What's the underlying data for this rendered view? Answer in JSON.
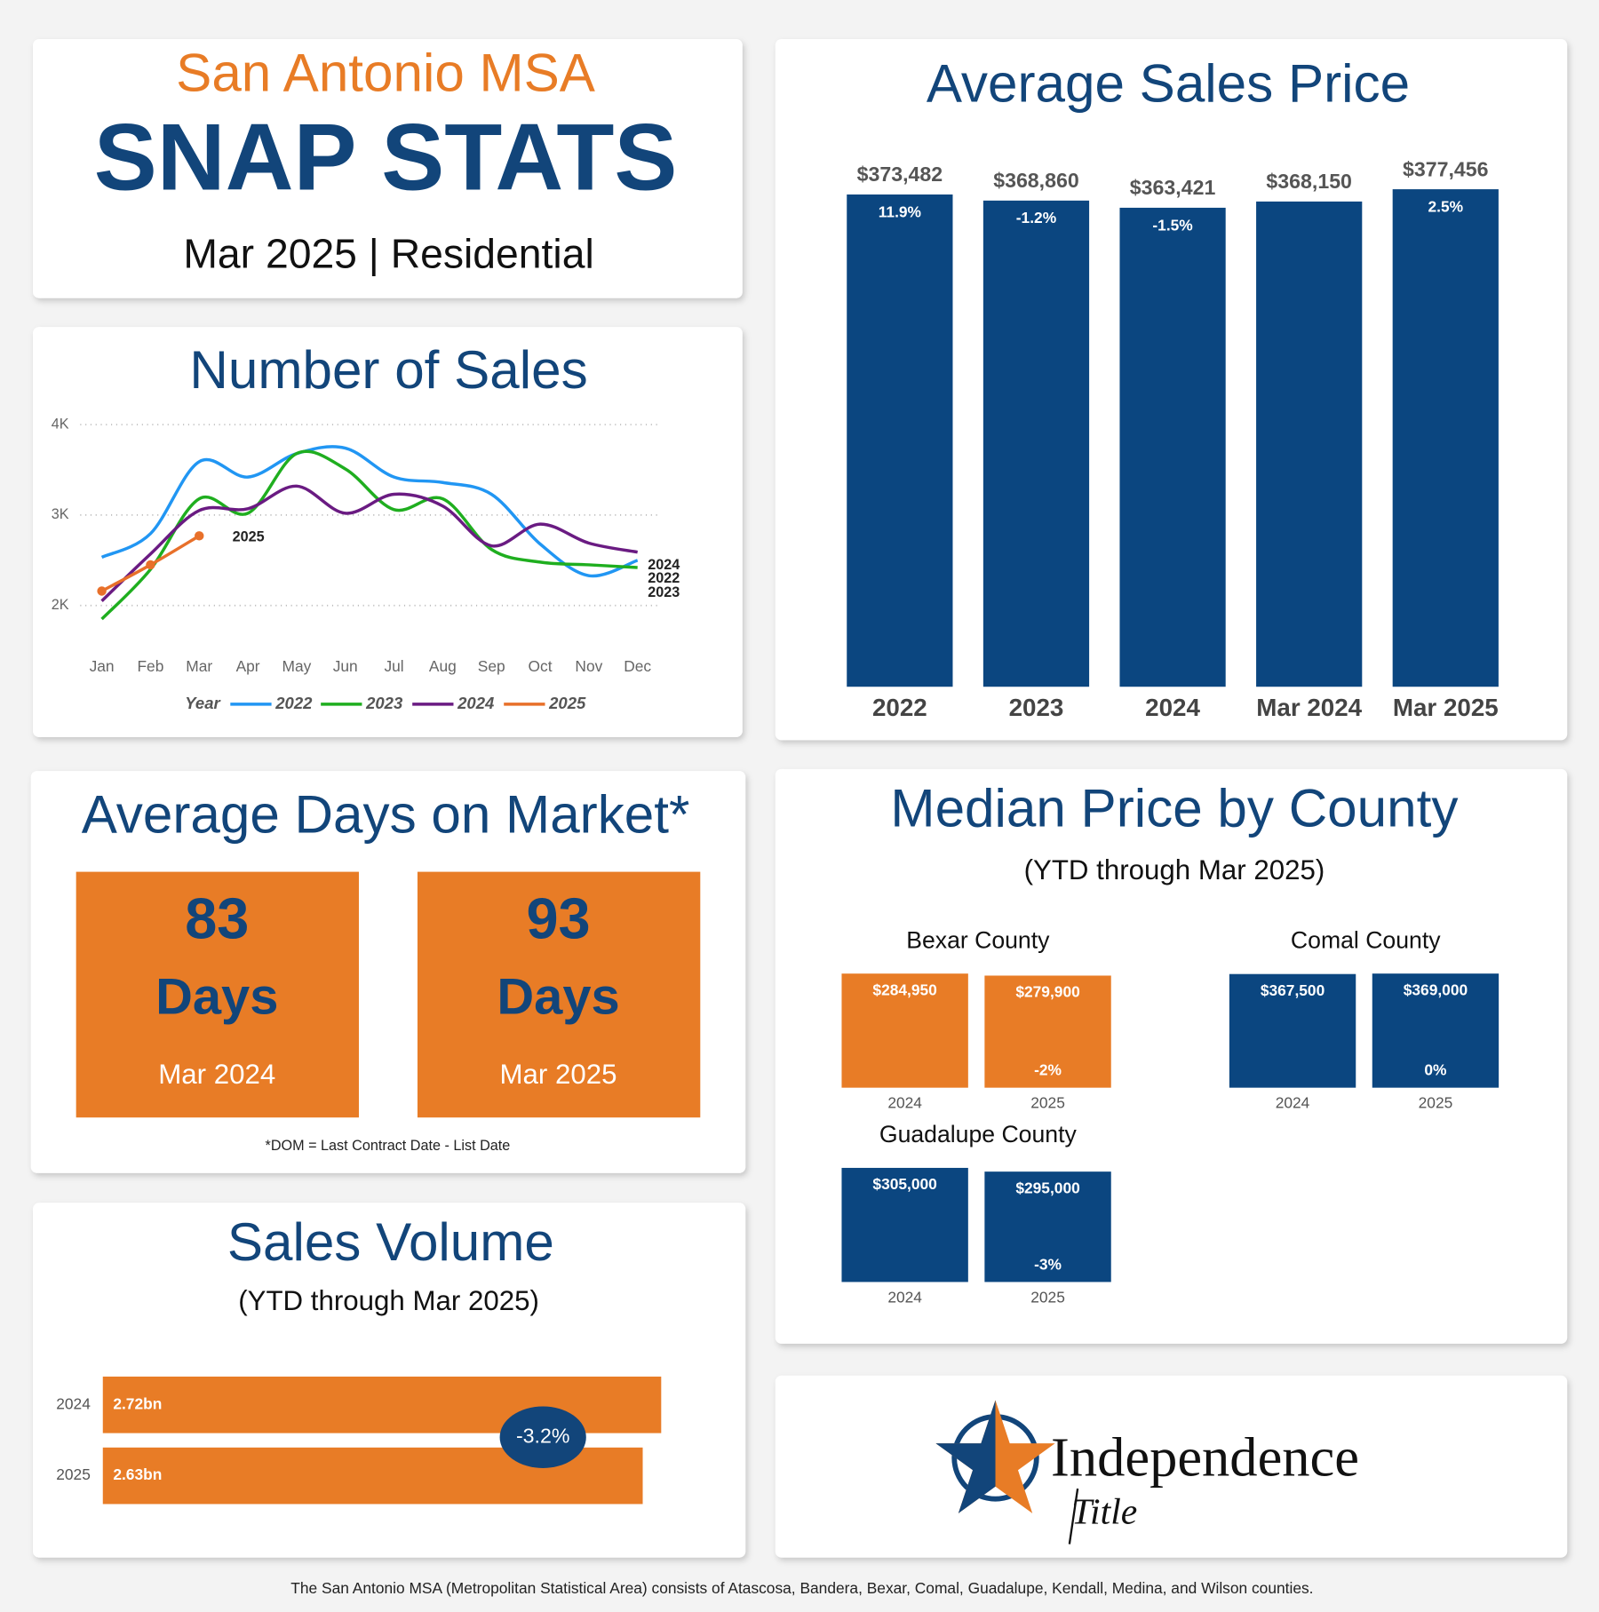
{
  "header": {
    "title": "San Antonio MSA",
    "headline": "SNAP STATS",
    "subtitle": "Mar 2025 | Residential"
  },
  "chart_data": [
    {
      "type": "line",
      "title": "Number of Sales",
      "categories": [
        "Jan",
        "Feb",
        "Mar",
        "Apr",
        "May",
        "Jun",
        "Jul",
        "Aug",
        "Sep",
        "Oct",
        "Nov",
        "Dec"
      ],
      "ylim": [
        1800,
        4000
      ],
      "yticks": [
        {
          "value": 2000,
          "label": "2K"
        },
        {
          "value": 3000,
          "label": "3K"
        },
        {
          "value": 4000,
          "label": "4K"
        }
      ],
      "grid": true,
      "legend_title": "Year",
      "legend": "bottom",
      "series": [
        {
          "name": "2022",
          "color": "#2196f3",
          "values": [
            2534,
            2795,
            3590,
            3420,
            3680,
            3740,
            3420,
            3360,
            3230,
            2680,
            2330,
            2500
          ]
        },
        {
          "name": "2023",
          "color": "#1fae1f",
          "values": [
            1850,
            2400,
            3180,
            3020,
            3680,
            3510,
            3060,
            3180,
            2620,
            2480,
            2450,
            2420
          ]
        },
        {
          "name": "2024",
          "color": "#6a1b82",
          "values": [
            2050,
            2570,
            3050,
            3070,
            3320,
            3020,
            3230,
            3100,
            2660,
            2900,
            2690,
            2590
          ]
        },
        {
          "name": "2025",
          "color": "#e8702a",
          "values": [
            2160,
            2450,
            2770,
            null,
            null,
            null,
            null,
            null,
            null,
            null,
            null,
            null
          ]
        }
      ]
    },
    {
      "type": "bar",
      "title": "Average Sales Price",
      "color": "#0b4680",
      "categories": [
        "2022",
        "2023",
        "2024",
        "Mar 2024",
        "Mar 2025"
      ],
      "values": [
        373482,
        368860,
        363421,
        368150,
        377456
      ],
      "value_labels": [
        "$373,482",
        "$368,860",
        "$363,421",
        "$368,150",
        "$377,456"
      ],
      "change_labels": [
        "11.9%",
        "-1.2%",
        "-1.5%",
        null,
        "2.5%"
      ],
      "ylim": [
        0,
        390000
      ]
    },
    {
      "type": "bar",
      "title": "Bexar County",
      "color": "#e87c26",
      "categories": [
        "2024",
        "2025"
      ],
      "values": [
        284950,
        279900
      ],
      "value_labels": [
        "$284,950",
        "$279,900"
      ],
      "change_labels": [
        null,
        "-2%"
      ],
      "ylim": [
        0,
        285000
      ]
    },
    {
      "type": "bar",
      "title": "Comal County",
      "color": "#0b4680",
      "categories": [
        "2024",
        "2025"
      ],
      "values": [
        367500,
        369000
      ],
      "value_labels": [
        "$367,500",
        "$369,000"
      ],
      "change_labels": [
        null,
        "0%"
      ],
      "ylim": [
        0,
        369000
      ]
    },
    {
      "type": "bar",
      "title": "Guadalupe County",
      "color": "#0b4680",
      "categories": [
        "2024",
        "2025"
      ],
      "values": [
        305000,
        295000
      ],
      "value_labels": [
        "$305,000",
        "$295,000"
      ],
      "change_labels": [
        null,
        "-3%"
      ],
      "ylim": [
        0,
        305000
      ]
    },
    {
      "type": "barh",
      "title": "Sales Volume",
      "subtitle": "(YTD through Mar 2025)",
      "color": "#e87c26",
      "categories": [
        "2024",
        "2025"
      ],
      "values": [
        2720000000,
        2630000000
      ],
      "value_labels": [
        "2.72bn",
        "2.63bn"
      ],
      "annotation": "-3.2%",
      "xlim": [
        0,
        2720000000
      ]
    }
  ],
  "median_price": {
    "title": "Median Price by County",
    "subtitle": "(YTD through Mar 2025)"
  },
  "days_on_market": {
    "title": "Average Days on Market*",
    "cards": [
      {
        "value": 83,
        "unit": "Days",
        "period": "Mar 2024"
      },
      {
        "value": 93,
        "unit": "Days",
        "period": "Mar 2025"
      }
    ],
    "footnote": "*DOM = Last Contract Date - List Date"
  },
  "logo": {
    "name": "Independence",
    "tagline": "Title"
  },
  "footer": "The San Antonio MSA (Metropolitan Statistical Area) consists of Atascosa, Bandera, Bexar, Comal, Guadalupe, Kendall, Medina, and Wilson counties."
}
